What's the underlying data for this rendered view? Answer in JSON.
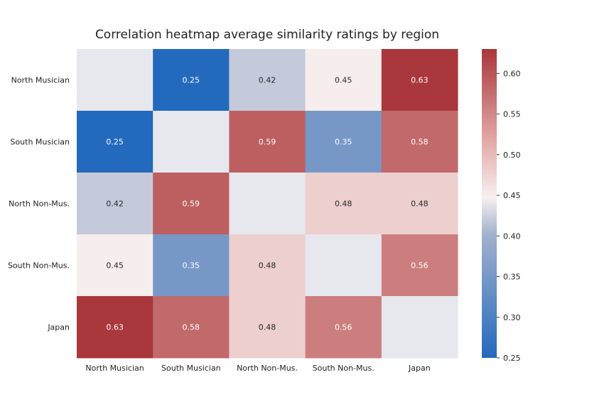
{
  "chart_data": {
    "type": "heatmap",
    "title": "Correlation heatmap average similarity ratings by region",
    "xlabel": "",
    "ylabel": "",
    "x_categories": [
      "North Musician",
      "South Musician",
      "North Non-Mus.",
      "South Non-Mus.",
      "Japan"
    ],
    "y_categories": [
      "North Musician",
      "South Musician",
      "North Non-Mus.",
      "South Non-Mus.",
      "Japan"
    ],
    "matrix": [
      [
        null,
        0.25,
        0.42,
        0.45,
        0.63
      ],
      [
        0.25,
        null,
        0.59,
        0.35,
        0.58
      ],
      [
        0.42,
        0.59,
        null,
        0.48,
        0.48
      ],
      [
        0.45,
        0.35,
        0.48,
        null,
        0.56
      ],
      [
        0.63,
        0.58,
        0.48,
        0.56,
        null
      ]
    ],
    "annotations": [
      [
        "",
        "0.25",
        "0.42",
        "0.45",
        "0.63"
      ],
      [
        "0.25",
        "",
        "0.59",
        "0.35",
        "0.58"
      ],
      [
        "0.42",
        "0.59",
        "",
        "0.48",
        "0.48"
      ],
      [
        "0.45",
        "0.35",
        "0.48",
        "",
        "0.56"
      ],
      [
        "0.63",
        "0.58",
        "0.48",
        "0.56",
        ""
      ]
    ],
    "diagonal_color": "#e7e7ee",
    "colormap": "vlag",
    "color_range": [
      0.25,
      0.63
    ],
    "colorbar_ticks": [
      "0.25",
      "0.30",
      "0.35",
      "0.40",
      "0.45",
      "0.50",
      "0.55",
      "0.60"
    ],
    "colorbar_stops": [
      "#2369bd",
      "#a2b1cc",
      "#f7f0f0",
      "#e2aaa8",
      "#a9373b"
    ]
  }
}
